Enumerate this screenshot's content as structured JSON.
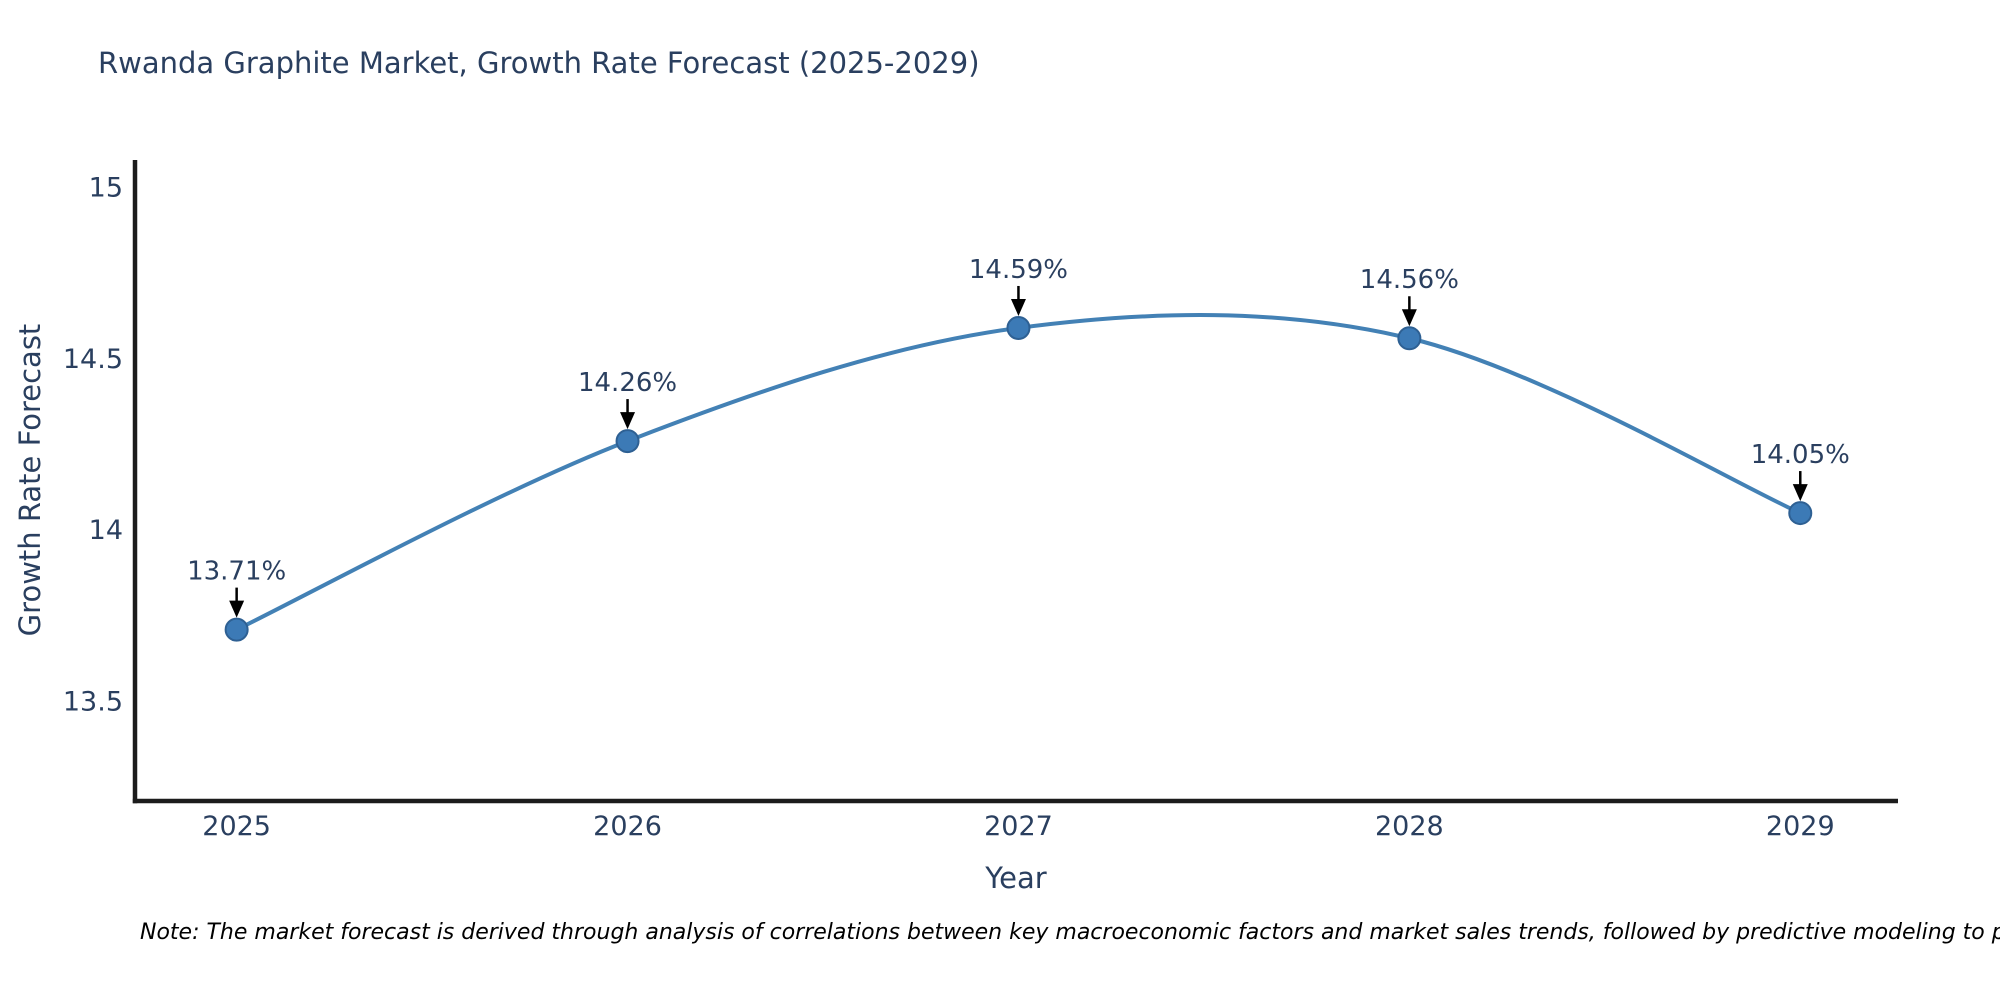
{
  "chart_data": {
    "type": "line",
    "title": "Rwanda Graphite Market, Growth Rate Forecast (2025-2029)",
    "xlabel": "Year",
    "ylabel": "Growth Rate Forecast",
    "x": [
      2025,
      2026,
      2027,
      2028,
      2029
    ],
    "x_tick_labels": [
      "2025",
      "2026",
      "2027",
      "2028",
      "2029"
    ],
    "series": [
      {
        "name": "Growth Rate Forecast",
        "values": [
          13.71,
          14.26,
          14.59,
          14.56,
          14.05
        ]
      }
    ],
    "point_labels": [
      "13.71%",
      "14.26%",
      "14.59%",
      "14.56%",
      "14.05%"
    ],
    "y_ticks": [
      13.5,
      14,
      14.5,
      15
    ],
    "y_tick_labels": [
      "13.5",
      "14",
      "14.5",
      "15"
    ],
    "xlim": [
      2024.74,
      2029.25
    ],
    "ylim": [
      13.21,
      15.08
    ],
    "line_shape": "spline",
    "grid": false,
    "legend_position": "none",
    "marker": "circle",
    "annotation_arrows": true,
    "colors": {
      "line": "#4381b5",
      "marker_fill": "#3c7ab6",
      "marker_edge": "#2e6093",
      "axis": "#1c1c1c",
      "tick_text": "#2a3f5f",
      "annotation_text": "#2a3f5f",
      "arrow": "#000000",
      "title_text": "#2a3f5f"
    }
  },
  "note": {
    "text": "Note: The market forecast is derived through analysis of correlations between key macroeconomic factors and market sales trends, followed by predictive modeling to project future sal"
  }
}
